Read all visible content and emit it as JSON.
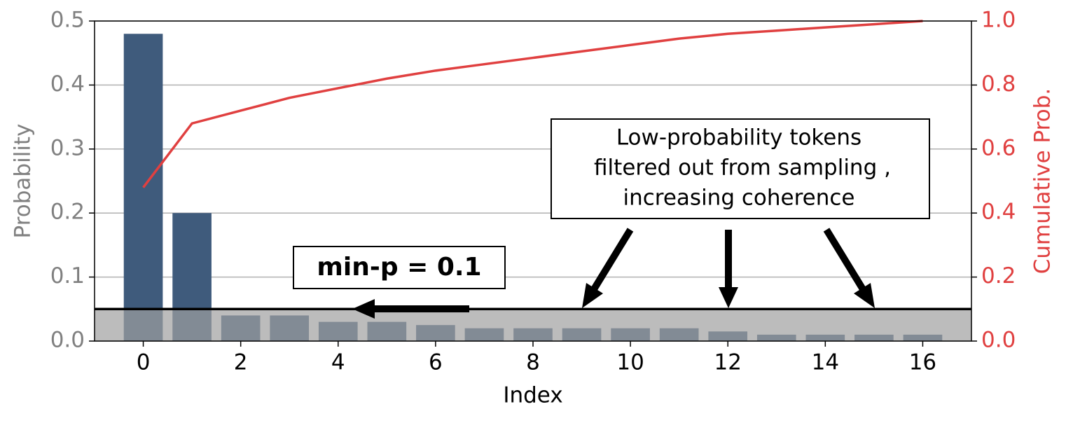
{
  "chart_data": {
    "type": "bar",
    "x": [
      0,
      1,
      2,
      3,
      4,
      5,
      6,
      7,
      8,
      9,
      10,
      11,
      12,
      13,
      14,
      15,
      16
    ],
    "series": [
      {
        "color": "#3f5b7c",
        "values": [
          0.48,
          0.2,
          0.04,
          0.04,
          0.03,
          0.03,
          0.025,
          0.02,
          0.02,
          0.02,
          0.02,
          0.02,
          0.015,
          0.01,
          0.01,
          0.01,
          0.01
        ]
      },
      {
        "type": "line",
        "axis": "y2",
        "color": "#e04040",
        "values": [
          0.48,
          0.68,
          0.72,
          0.76,
          0.79,
          0.82,
          0.845,
          0.865,
          0.885,
          0.905,
          0.925,
          0.945,
          0.96,
          0.97,
          0.98,
          0.99,
          1.0
        ]
      }
    ],
    "xlabel": "Index",
    "ylabel": "Probability",
    "y2label": "Cumulative Prob.",
    "xlim": [
      -1,
      17
    ],
    "xticks": [
      0,
      2,
      4,
      6,
      8,
      10,
      12,
      14,
      16
    ],
    "ylim": [
      0,
      0.5
    ],
    "yticks": [
      {
        "value": 0,
        "label": "0.0"
      },
      0.1,
      0.2,
      0.3,
      0.4,
      0.5
    ],
    "y2lim": [
      0,
      1
    ],
    "y2ticks": [
      {
        "value": 0,
        "label": "0.0"
      },
      0.2,
      0.4,
      0.6,
      0.8,
      {
        "value": 1,
        "label": "1.0"
      }
    ],
    "grid": true,
    "threshold": 0.05,
    "annotation": "min-p = 0.1",
    "callout": [
      "Low-probability tokens",
      "filtered out from sampling ,",
      "increasing coherence"
    ]
  }
}
